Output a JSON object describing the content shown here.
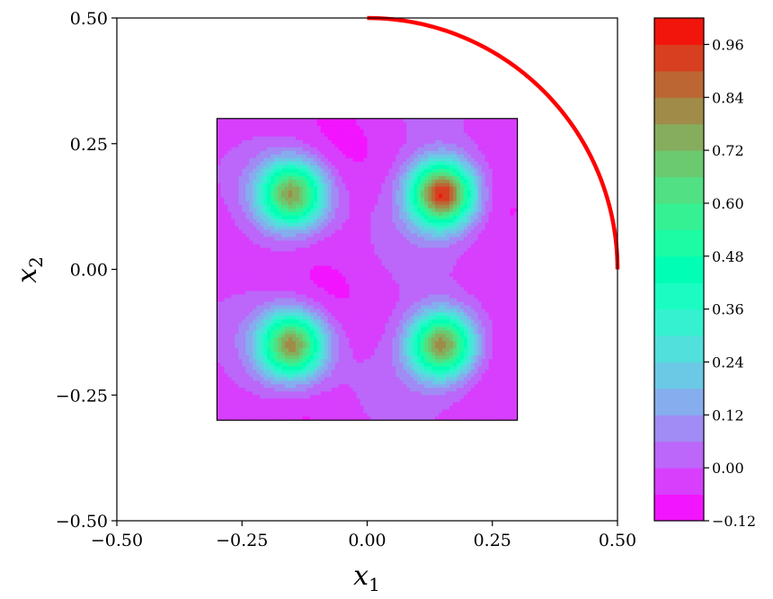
{
  "chart_data": {
    "type": "heatmap",
    "title": "",
    "xlabel": "x",
    "xlabel_sub": "1",
    "ylabel": "x",
    "ylabel_sub": "2",
    "xlim": [
      -0.5,
      0.5
    ],
    "ylim": [
      -0.5,
      0.5
    ],
    "xticks": [
      -0.5,
      -0.25,
      0.0,
      0.25,
      0.5
    ],
    "xtick_labels": [
      "−0.50",
      "−0.25",
      "0.00",
      "0.25",
      "0.50"
    ],
    "yticks": [
      -0.5,
      -0.25,
      0.0,
      0.25,
      0.5
    ],
    "ytick_labels": [
      "−0.50",
      "−0.25",
      "0.00",
      "0.25",
      "0.50"
    ],
    "grid": false,
    "heatmap_region": {
      "x": [
        -0.3,
        0.3
      ],
      "y": [
        -0.3,
        0.3
      ]
    },
    "peaks": [
      {
        "x": -0.15,
        "y": 0.15,
        "value": 0.78
      },
      {
        "x": 0.15,
        "y": 0.15,
        "value": 1.0
      },
      {
        "x": -0.15,
        "y": -0.15,
        "value": 0.82
      },
      {
        "x": 0.15,
        "y": -0.15,
        "value": 0.86
      }
    ],
    "background_value": 0.0,
    "min_value": -0.12,
    "curve": {
      "type": "arc",
      "center": [
        0.0,
        0.0
      ],
      "radius": 0.5,
      "theta_start_deg": 0,
      "theta_end_deg": 90,
      "color": "#ff0000"
    },
    "colorbar": {
      "colormap": "rainbow",
      "vmin": -0.12,
      "vmax": 1.02,
      "levels": 19,
      "ticks": [
        -0.12,
        0.0,
        0.12,
        0.24,
        0.36,
        0.48,
        0.6,
        0.72,
        0.84,
        0.96
      ],
      "tick_labels": [
        "−0.12",
        "0.00",
        "0.12",
        "0.24",
        "0.36",
        "0.48",
        "0.60",
        "0.72",
        "0.84",
        "0.96"
      ]
    }
  }
}
